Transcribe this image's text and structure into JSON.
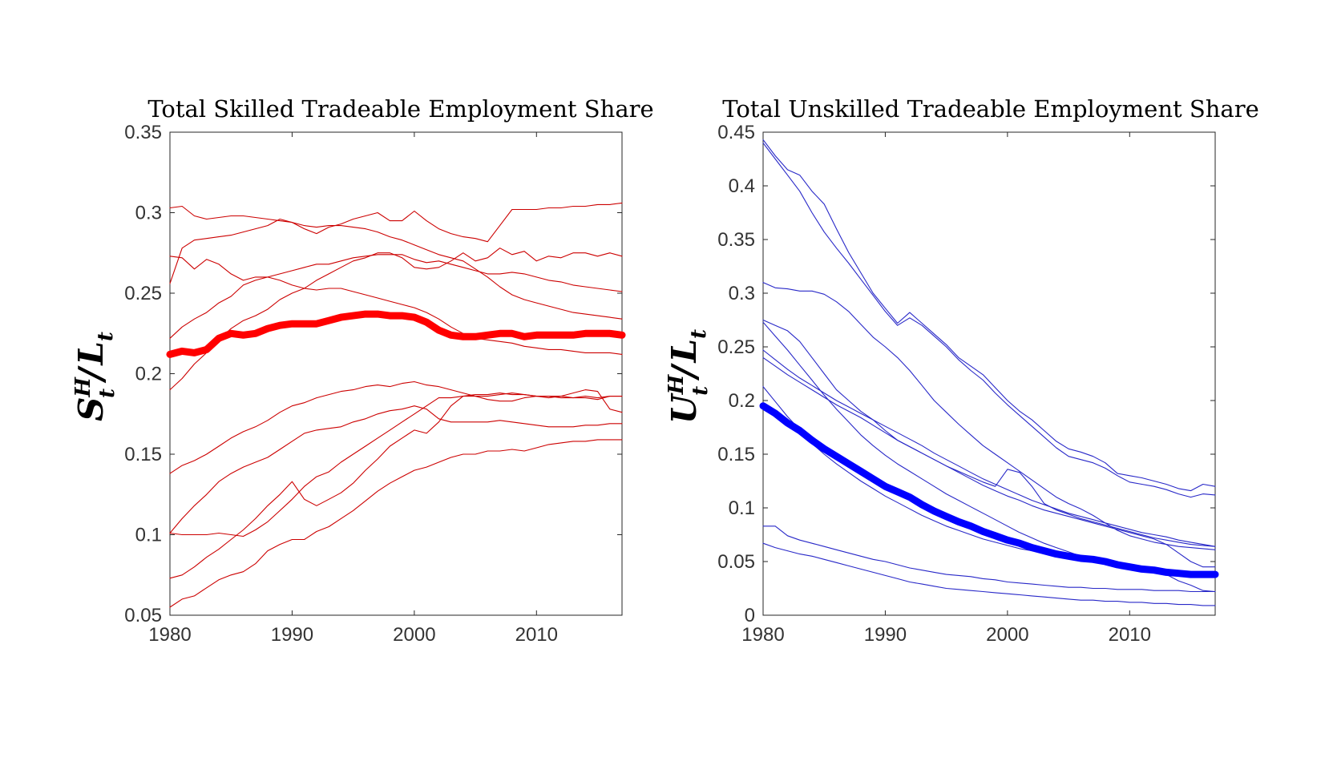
{
  "chart_data": [
    {
      "type": "line",
      "title": "Total Skilled Tradeable Employment Share",
      "ylabel": {
        "base": "S",
        "sup": "H",
        "sub": "t",
        "sep": "/",
        "base2": "L",
        "sub2": "t"
      },
      "xlim": [
        1980,
        2017
      ],
      "ylim": [
        0.05,
        0.35
      ],
      "xticks": [
        1980,
        1990,
        2000,
        2010
      ],
      "yticks": [
        0.05,
        0.1,
        0.15,
        0.2,
        0.25,
        0.3,
        0.35
      ],
      "ytick_labels": [
        "0.05",
        "0.1",
        "0.15",
        "0.2",
        "0.25",
        "0.3",
        "0.35"
      ],
      "grid": false,
      "colors": {
        "series": "#cc0000",
        "highlight": "#ff0000"
      },
      "x": [
        1980,
        1981,
        1982,
        1983,
        1984,
        1985,
        1986,
        1987,
        1988,
        1989,
        1990,
        1991,
        1992,
        1993,
        1994,
        1995,
        1996,
        1997,
        1998,
        1999,
        2000,
        2001,
        2002,
        2003,
        2004,
        2005,
        2006,
        2007,
        2008,
        2009,
        2010,
        2011,
        2012,
        2013,
        2014,
        2015,
        2016,
        2017
      ],
      "series": [
        {
          "highlight": true,
          "values": [
            0.212,
            0.214,
            0.213,
            0.215,
            0.222,
            0.225,
            0.224,
            0.225,
            0.228,
            0.23,
            0.231,
            0.231,
            0.231,
            0.233,
            0.235,
            0.236,
            0.237,
            0.237,
            0.236,
            0.236,
            0.235,
            0.232,
            0.227,
            0.224,
            0.223,
            0.223,
            0.224,
            0.225,
            0.225,
            0.223,
            0.224,
            0.224,
            0.224,
            0.224,
            0.225,
            0.225,
            0.225,
            0.224
          ]
        },
        {
          "values": [
            0.303,
            0.304,
            0.298,
            0.296,
            0.297,
            0.298,
            0.298,
            0.297,
            0.296,
            0.295,
            0.294,
            0.292,
            0.291,
            0.292,
            0.292,
            0.291,
            0.29,
            0.288,
            0.285,
            0.283,
            0.28,
            0.277,
            0.274,
            0.272,
            0.27,
            0.265,
            0.26,
            0.254,
            0.249,
            0.246,
            0.244,
            0.242,
            0.24,
            0.238,
            0.237,
            0.236,
            0.235,
            0.234
          ]
        },
        {
          "values": [
            0.256,
            0.278,
            0.283,
            0.284,
            0.285,
            0.286,
            0.288,
            0.29,
            0.292,
            0.296,
            0.294,
            0.29,
            0.287,
            0.291,
            0.293,
            0.296,
            0.298,
            0.3,
            0.295,
            0.295,
            0.301,
            0.295,
            0.29,
            0.287,
            0.285,
            0.284,
            0.282,
            0.292,
            0.302,
            0.302,
            0.302,
            0.303,
            0.303,
            0.304,
            0.304,
            0.305,
            0.305,
            0.306
          ]
        },
        {
          "values": [
            0.273,
            0.272,
            0.265,
            0.271,
            0.268,
            0.262,
            0.258,
            0.26,
            0.26,
            0.258,
            0.255,
            0.253,
            0.252,
            0.253,
            0.253,
            0.251,
            0.249,
            0.247,
            0.245,
            0.243,
            0.241,
            0.238,
            0.234,
            0.229,
            0.225,
            0.222,
            0.221,
            0.22,
            0.219,
            0.217,
            0.216,
            0.215,
            0.215,
            0.214,
            0.213,
            0.213,
            0.213,
            0.212
          ]
        },
        {
          "values": [
            0.222,
            0.229,
            0.234,
            0.238,
            0.244,
            0.248,
            0.255,
            0.258,
            0.26,
            0.262,
            0.264,
            0.266,
            0.268,
            0.268,
            0.27,
            0.272,
            0.273,
            0.274,
            0.274,
            0.274,
            0.271,
            0.269,
            0.27,
            0.268,
            0.266,
            0.264,
            0.262,
            0.262,
            0.263,
            0.262,
            0.26,
            0.258,
            0.257,
            0.255,
            0.254,
            0.253,
            0.252,
            0.251
          ]
        },
        {
          "values": [
            0.19,
            0.197,
            0.206,
            0.213,
            0.221,
            0.228,
            0.233,
            0.236,
            0.24,
            0.246,
            0.25,
            0.253,
            0.258,
            0.262,
            0.266,
            0.27,
            0.272,
            0.275,
            0.275,
            0.272,
            0.266,
            0.265,
            0.266,
            0.27,
            0.275,
            0.27,
            0.272,
            0.278,
            0.274,
            0.276,
            0.27,
            0.273,
            0.272,
            0.275,
            0.275,
            0.273,
            0.275,
            0.273
          ]
        },
        {
          "values": [
            0.138,
            0.143,
            0.146,
            0.15,
            0.155,
            0.16,
            0.164,
            0.167,
            0.171,
            0.176,
            0.18,
            0.182,
            0.185,
            0.187,
            0.189,
            0.19,
            0.192,
            0.193,
            0.192,
            0.194,
            0.195,
            0.193,
            0.192,
            0.19,
            0.188,
            0.186,
            0.186,
            0.187,
            0.188,
            0.187,
            0.186,
            0.186,
            0.185,
            0.185,
            0.186,
            0.185,
            0.186,
            0.186
          ]
        },
        {
          "values": [
            0.101,
            0.11,
            0.118,
            0.125,
            0.133,
            0.138,
            0.142,
            0.145,
            0.148,
            0.153,
            0.158,
            0.163,
            0.165,
            0.166,
            0.167,
            0.17,
            0.172,
            0.175,
            0.177,
            0.178,
            0.18,
            0.178,
            0.172,
            0.17,
            0.17,
            0.17,
            0.17,
            0.171,
            0.17,
            0.169,
            0.168,
            0.167,
            0.167,
            0.167,
            0.168,
            0.168,
            0.169,
            0.169
          ]
        },
        {
          "values": [
            0.101,
            0.1,
            0.1,
            0.1,
            0.101,
            0.1,
            0.099,
            0.103,
            0.108,
            0.115,
            0.122,
            0.13,
            0.136,
            0.139,
            0.145,
            0.15,
            0.155,
            0.16,
            0.165,
            0.17,
            0.175,
            0.18,
            0.185,
            0.185,
            0.186,
            0.186,
            0.184,
            0.183,
            0.183,
            0.185,
            0.186,
            0.186,
            0.186,
            0.185,
            0.185,
            0.184,
            0.186,
            0.186
          ]
        },
        {
          "values": [
            0.073,
            0.075,
            0.08,
            0.086,
            0.091,
            0.097,
            0.103,
            0.11,
            0.118,
            0.125,
            0.133,
            0.122,
            0.118,
            0.122,
            0.126,
            0.132,
            0.14,
            0.147,
            0.155,
            0.16,
            0.165,
            0.163,
            0.17,
            0.18,
            0.186,
            0.187,
            0.187,
            0.188,
            0.187,
            0.187,
            0.186,
            0.185,
            0.186,
            0.188,
            0.19,
            0.189,
            0.178,
            0.176
          ]
        },
        {
          "values": [
            0.055,
            0.06,
            0.062,
            0.067,
            0.072,
            0.075,
            0.077,
            0.082,
            0.09,
            0.094,
            0.097,
            0.097,
            0.102,
            0.105,
            0.11,
            0.115,
            0.121,
            0.127,
            0.132,
            0.136,
            0.14,
            0.142,
            0.145,
            0.148,
            0.15,
            0.15,
            0.152,
            0.152,
            0.153,
            0.152,
            0.154,
            0.156,
            0.157,
            0.158,
            0.158,
            0.159,
            0.159,
            0.159
          ]
        }
      ]
    },
    {
      "type": "line",
      "title": "Total Unskilled Tradeable Employment Share",
      "ylabel": {
        "base": "U",
        "sup": "H",
        "sub": "t",
        "sep": "/",
        "base2": "L",
        "sub2": "t"
      },
      "xlim": [
        1980,
        2017
      ],
      "ylim": [
        0,
        0.45
      ],
      "xticks": [
        1980,
        1990,
        2000,
        2010
      ],
      "yticks": [
        0,
        0.05,
        0.1,
        0.15,
        0.2,
        0.25,
        0.3,
        0.35,
        0.4,
        0.45
      ],
      "ytick_labels": [
        "0",
        "0.05",
        "0.1",
        "0.15",
        "0.2",
        "0.25",
        "0.3",
        "0.35",
        "0.4",
        "0.45"
      ],
      "grid": false,
      "colors": {
        "series": "#2828c8",
        "highlight": "#0000ff"
      },
      "x": [
        1980,
        1981,
        1982,
        1983,
        1984,
        1985,
        1986,
        1987,
        1988,
        1989,
        1990,
        1991,
        1992,
        1993,
        1994,
        1995,
        1996,
        1997,
        1998,
        1999,
        2000,
        2001,
        2002,
        2003,
        2004,
        2005,
        2006,
        2007,
        2008,
        2009,
        2010,
        2011,
        2012,
        2013,
        2014,
        2015,
        2016,
        2017
      ],
      "series": [
        {
          "highlight": true,
          "values": [
            0.195,
            0.188,
            0.179,
            0.172,
            0.163,
            0.155,
            0.148,
            0.141,
            0.134,
            0.127,
            0.12,
            0.115,
            0.11,
            0.103,
            0.097,
            0.092,
            0.087,
            0.083,
            0.078,
            0.074,
            0.07,
            0.067,
            0.063,
            0.06,
            0.057,
            0.055,
            0.053,
            0.052,
            0.05,
            0.047,
            0.045,
            0.043,
            0.042,
            0.04,
            0.039,
            0.038,
            0.038,
            0.038
          ]
        },
        {
          "values": [
            0.443,
            0.428,
            0.415,
            0.41,
            0.395,
            0.383,
            0.36,
            0.338,
            0.319,
            0.3,
            0.286,
            0.272,
            0.282,
            0.272,
            0.262,
            0.252,
            0.24,
            0.232,
            0.224,
            0.212,
            0.2,
            0.19,
            0.182,
            0.172,
            0.162,
            0.155,
            0.152,
            0.148,
            0.142,
            0.132,
            0.13,
            0.128,
            0.125,
            0.122,
            0.118,
            0.116,
            0.122,
            0.12
          ]
        },
        {
          "values": [
            0.44,
            0.425,
            0.41,
            0.395,
            0.375,
            0.357,
            0.342,
            0.328,
            0.313,
            0.298,
            0.283,
            0.27,
            0.277,
            0.27,
            0.26,
            0.25,
            0.238,
            0.228,
            0.219,
            0.207,
            0.196,
            0.186,
            0.176,
            0.166,
            0.156,
            0.148,
            0.145,
            0.142,
            0.137,
            0.13,
            0.124,
            0.122,
            0.12,
            0.117,
            0.113,
            0.11,
            0.113,
            0.112
          ]
        },
        {
          "values": [
            0.31,
            0.305,
            0.304,
            0.302,
            0.302,
            0.299,
            0.292,
            0.283,
            0.271,
            0.259,
            0.25,
            0.24,
            0.228,
            0.214,
            0.2,
            0.189,
            0.178,
            0.168,
            0.158,
            0.15,
            0.142,
            0.134,
            0.126,
            0.118,
            0.11,
            0.104,
            0.099,
            0.093,
            0.086,
            0.079,
            0.074,
            0.071,
            0.068,
            0.066,
            0.064,
            0.063,
            0.062,
            0.061
          ]
        },
        {
          "values": [
            0.275,
            0.27,
            0.265,
            0.255,
            0.24,
            0.225,
            0.21,
            0.2,
            0.19,
            0.182,
            0.172,
            0.163,
            0.157,
            0.151,
            0.145,
            0.139,
            0.134,
            0.129,
            0.124,
            0.12,
            0.136,
            0.133,
            0.12,
            0.104,
            0.098,
            0.094,
            0.09,
            0.087,
            0.084,
            0.081,
            0.078,
            0.075,
            0.072,
            0.07,
            0.068,
            0.066,
            0.065,
            0.064
          ]
        },
        {
          "values": [
            0.273,
            0.26,
            0.247,
            0.233,
            0.219,
            0.205,
            0.192,
            0.18,
            0.168,
            0.158,
            0.149,
            0.141,
            0.134,
            0.127,
            0.12,
            0.113,
            0.107,
            0.101,
            0.095,
            0.089,
            0.083,
            0.077,
            0.072,
            0.067,
            0.063,
            0.059,
            0.055,
            0.052,
            0.049,
            0.047,
            0.045,
            0.043,
            0.042,
            0.041,
            0.041,
            0.04,
            0.04,
            0.04
          ]
        },
        {
          "values": [
            0.247,
            0.238,
            0.229,
            0.221,
            0.214,
            0.207,
            0.2,
            0.194,
            0.188,
            0.182,
            0.176,
            0.17,
            0.164,
            0.158,
            0.151,
            0.145,
            0.139,
            0.133,
            0.127,
            0.122,
            0.117,
            0.112,
            0.107,
            0.103,
            0.099,
            0.095,
            0.092,
            0.089,
            0.086,
            0.083,
            0.08,
            0.077,
            0.075,
            0.073,
            0.07,
            0.068,
            0.066,
            0.064
          ]
        },
        {
          "values": [
            0.24,
            0.232,
            0.224,
            0.217,
            0.21,
            0.203,
            0.196,
            0.19,
            0.184,
            0.177,
            0.17,
            0.163,
            0.157,
            0.151,
            0.145,
            0.139,
            0.133,
            0.127,
            0.121,
            0.116,
            0.111,
            0.107,
            0.102,
            0.098,
            0.095,
            0.092,
            0.089,
            0.086,
            0.083,
            0.08,
            0.077,
            0.074,
            0.071,
            0.066,
            0.058,
            0.05,
            0.045,
            0.045
          ]
        },
        {
          "values": [
            0.213,
            0.199,
            0.185,
            0.173,
            0.16,
            0.15,
            0.141,
            0.133,
            0.125,
            0.118,
            0.111,
            0.105,
            0.099,
            0.093,
            0.088,
            0.083,
            0.079,
            0.075,
            0.071,
            0.068,
            0.065,
            0.062,
            0.06,
            0.058,
            0.056,
            0.055,
            0.053,
            0.052,
            0.05,
            0.048,
            0.046,
            0.044,
            0.042,
            0.038,
            0.032,
            0.028,
            0.023,
            0.022
          ]
        },
        {
          "values": [
            0.083,
            0.083,
            0.074,
            0.07,
            0.067,
            0.064,
            0.061,
            0.058,
            0.055,
            0.052,
            0.05,
            0.047,
            0.044,
            0.042,
            0.04,
            0.038,
            0.037,
            0.036,
            0.034,
            0.033,
            0.031,
            0.03,
            0.029,
            0.028,
            0.027,
            0.026,
            0.026,
            0.025,
            0.025,
            0.024,
            0.024,
            0.024,
            0.023,
            0.023,
            0.023,
            0.022,
            0.022,
            0.022
          ]
        },
        {
          "values": [
            0.067,
            0.063,
            0.06,
            0.057,
            0.055,
            0.052,
            0.049,
            0.046,
            0.043,
            0.04,
            0.037,
            0.034,
            0.031,
            0.029,
            0.027,
            0.025,
            0.024,
            0.023,
            0.022,
            0.021,
            0.02,
            0.019,
            0.018,
            0.017,
            0.016,
            0.015,
            0.014,
            0.014,
            0.013,
            0.013,
            0.012,
            0.012,
            0.011,
            0.011,
            0.01,
            0.01,
            0.009,
            0.009
          ]
        }
      ]
    }
  ]
}
